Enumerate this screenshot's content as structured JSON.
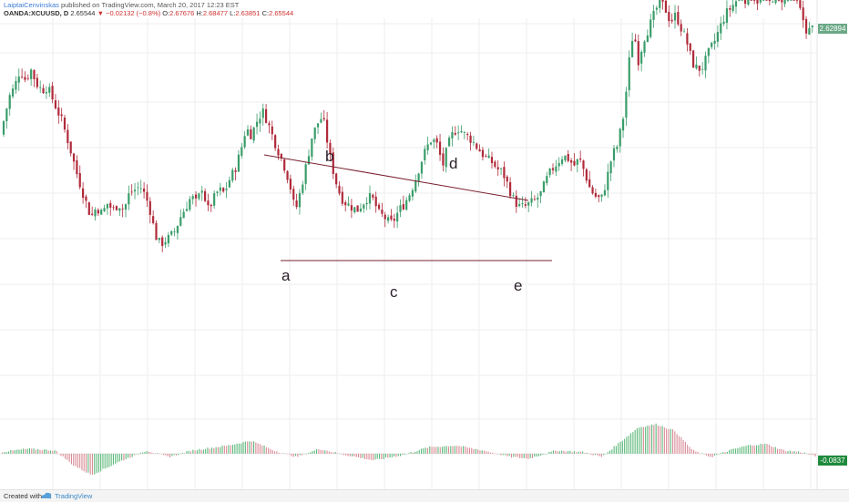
{
  "header": {
    "author": "LaiptaiCenvinskas",
    "published": "published on TradingView.com, March 20, 2017 12:23 EST",
    "symbol": "OANDA:XCUUSD, D",
    "last": "2.65544",
    "change_arrow": "▼",
    "change": "−0.02132 (−0.8%)",
    "open_label": "O:",
    "open": "2.67676",
    "high_label": "H:",
    "high": "2.68477",
    "low_label": "L:",
    "low": "2.63851",
    "close_label": "C:",
    "close": "2.65544"
  },
  "price_axis": {
    "last_price_tag": "2.62894",
    "osc_tag": "-0.0837"
  },
  "footer": {
    "created_with": "Created with",
    "brand": "TradingView"
  },
  "chart_data": {
    "type": "candlestick",
    "symbol": "OANDA:XCUUSD",
    "interval": "D",
    "wave_labels": [
      "a",
      "b",
      "c",
      "d",
      "e"
    ],
    "pattern": "contracting triangle (a-b-c-d-e) with breakout",
    "price_ylim": [
      1.9,
      2.75
    ],
    "price_path": [
      [
        0,
        2.41
      ],
      [
        5,
        2.46
      ],
      [
        10,
        2.52
      ],
      [
        16,
        2.55
      ],
      [
        22,
        2.6
      ],
      [
        28,
        2.57
      ],
      [
        34,
        2.6
      ],
      [
        40,
        2.56
      ],
      [
        46,
        2.54
      ],
      [
        52,
        2.55
      ],
      [
        60,
        2.5
      ],
      [
        68,
        2.45
      ],
      [
        76,
        2.38
      ],
      [
        84,
        2.3
      ],
      [
        90,
        2.25
      ],
      [
        96,
        2.2
      ],
      [
        100,
        2.17
      ],
      [
        106,
        2.2
      ],
      [
        112,
        2.18
      ],
      [
        118,
        2.21
      ],
      [
        124,
        2.19
      ],
      [
        130,
        2.21
      ],
      [
        136,
        2.19
      ],
      [
        142,
        2.24
      ],
      [
        148,
        2.25
      ],
      [
        154,
        2.26
      ],
      [
        160,
        2.23
      ],
      [
        166,
        2.18
      ],
      [
        170,
        2.12
      ],
      [
        176,
        2.09
      ],
      [
        180,
        2.1
      ],
      [
        186,
        2.11
      ],
      [
        192,
        2.13
      ],
      [
        198,
        2.17
      ],
      [
        204,
        2.2
      ],
      [
        210,
        2.23
      ],
      [
        216,
        2.21
      ],
      [
        222,
        2.26
      ],
      [
        228,
        2.19
      ],
      [
        234,
        2.22
      ],
      [
        240,
        2.25
      ],
      [
        246,
        2.24
      ],
      [
        252,
        2.28
      ],
      [
        258,
        2.31
      ],
      [
        264,
        2.36
      ],
      [
        270,
        2.43
      ],
      [
        276,
        2.41
      ],
      [
        282,
        2.45
      ],
      [
        288,
        2.48
      ],
      [
        292,
        2.46
      ],
      [
        296,
        2.43
      ],
      [
        300,
        2.4
      ],
      [
        306,
        2.36
      ],
      [
        312,
        2.32
      ],
      [
        318,
        2.27
      ],
      [
        322,
        2.21
      ],
      [
        326,
        2.2
      ],
      [
        330,
        2.25
      ],
      [
        336,
        2.32
      ],
      [
        342,
        2.4
      ],
      [
        348,
        2.44
      ],
      [
        352,
        2.46
      ],
      [
        356,
        2.44
      ],
      [
        362,
        2.35
      ],
      [
        368,
        2.28
      ],
      [
        374,
        2.23
      ],
      [
        380,
        2.21
      ],
      [
        386,
        2.2
      ],
      [
        392,
        2.19
      ],
      [
        398,
        2.21
      ],
      [
        404,
        2.23
      ],
      [
        410,
        2.22
      ],
      [
        416,
        2.18
      ],
      [
        422,
        2.17
      ],
      [
        428,
        2.15
      ],
      [
        432,
        2.16
      ],
      [
        438,
        2.19
      ],
      [
        444,
        2.21
      ],
      [
        450,
        2.24
      ],
      [
        456,
        2.28
      ],
      [
        462,
        2.33
      ],
      [
        468,
        2.37
      ],
      [
        474,
        2.4
      ],
      [
        480,
        2.38
      ],
      [
        486,
        2.32
      ],
      [
        492,
        2.38
      ],
      [
        498,
        2.42
      ],
      [
        504,
        2.43
      ],
      [
        510,
        2.41
      ],
      [
        516,
        2.4
      ],
      [
        522,
        2.38
      ],
      [
        528,
        2.36
      ],
      [
        534,
        2.34
      ],
      [
        540,
        2.33
      ],
      [
        546,
        2.31
      ],
      [
        552,
        2.3
      ],
      [
        558,
        2.26
      ],
      [
        564,
        2.22
      ],
      [
        570,
        2.2
      ],
      [
        576,
        2.2
      ],
      [
        582,
        2.21
      ],
      [
        588,
        2.22
      ],
      [
        594,
        2.24
      ],
      [
        600,
        2.28
      ],
      [
        606,
        2.31
      ],
      [
        612,
        2.33
      ],
      [
        618,
        2.35
      ],
      [
        624,
        2.34
      ],
      [
        630,
        2.32
      ],
      [
        636,
        2.34
      ],
      [
        642,
        2.3
      ],
      [
        648,
        2.25
      ],
      [
        654,
        2.23
      ],
      [
        660,
        2.22
      ],
      [
        666,
        2.28
      ],
      [
        672,
        2.35
      ],
      [
        678,
        2.38
      ],
      [
        684,
        2.46
      ],
      [
        688,
        2.55
      ],
      [
        692,
        2.66
      ],
      [
        696,
        2.72
      ],
      [
        700,
        2.62
      ],
      [
        704,
        2.66
      ],
      [
        708,
        2.7
      ],
      [
        712,
        2.72
      ],
      [
        718,
        2.76
      ],
      [
        724,
        2.8
      ],
      [
        730,
        2.78
      ],
      [
        736,
        2.74
      ],
      [
        742,
        2.76
      ],
      [
        748,
        2.72
      ],
      [
        754,
        2.68
      ],
      [
        760,
        2.62
      ],
      [
        766,
        2.6
      ],
      [
        772,
        2.61
      ],
      [
        778,
        2.65
      ],
      [
        784,
        2.68
      ],
      [
        790,
        2.72
      ],
      [
        796,
        2.76
      ],
      [
        802,
        2.78
      ],
      [
        808,
        2.8
      ],
      [
        814,
        2.82
      ],
      [
        820,
        2.8
      ],
      [
        826,
        2.82
      ],
      [
        832,
        2.8
      ],
      [
        838,
        2.82
      ],
      [
        844,
        2.79
      ],
      [
        850,
        2.82
      ],
      [
        856,
        2.8
      ],
      [
        862,
        2.82
      ],
      [
        868,
        2.84
      ],
      [
        874,
        2.8
      ],
      [
        880,
        2.76
      ],
      [
        886,
        2.71
      ],
      [
        892,
        2.72
      ],
      [
        896,
        2.74
      ]
    ],
    "macd_hist_path": [
      [
        0,
        0.002
      ],
      [
        30,
        0.006
      ],
      [
        60,
        0.004
      ],
      [
        80,
        -0.014
      ],
      [
        100,
        -0.026
      ],
      [
        130,
        -0.01
      ],
      [
        160,
        0.004
      ],
      [
        185,
        -0.004
      ],
      [
        210,
        0.004
      ],
      [
        250,
        0.01
      ],
      [
        275,
        0.016
      ],
      [
        300,
        0.004
      ],
      [
        325,
        -0.004
      ],
      [
        350,
        0.006
      ],
      [
        380,
        -0.002
      ],
      [
        410,
        -0.008
      ],
      [
        440,
        -0.002
      ],
      [
        470,
        0.008
      ],
      [
        500,
        0.01
      ],
      [
        530,
        0.004
      ],
      [
        560,
        -0.004
      ],
      [
        580,
        -0.006
      ],
      [
        610,
        0.004
      ],
      [
        640,
        0.002
      ],
      [
        660,
        -0.004
      ],
      [
        680,
        0.014
      ],
      [
        700,
        0.032
      ],
      [
        720,
        0.036
      ],
      [
        740,
        0.028
      ],
      [
        760,
        0.004
      ],
      [
        780,
        -0.004
      ],
      [
        800,
        0.004
      ],
      [
        820,
        0.01
      ],
      [
        840,
        0.012
      ],
      [
        860,
        0.004
      ],
      [
        880,
        0.002
      ],
      [
        896,
        -0.004
      ]
    ]
  }
}
